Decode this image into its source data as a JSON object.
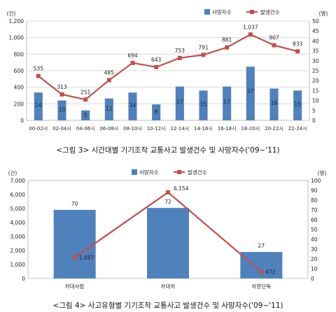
{
  "chart_data": [
    {
      "type": "bar+line",
      "caption": "<그림 3> 시간대별 기기조작 교통사고 발생건수 및 사망자수('09~'11)",
      "left_unit": "(건)",
      "right_unit": "(명)",
      "legend_position": "top-right",
      "categories": [
        "00-02시",
        "02-04시",
        "04-06시",
        "06-08시",
        "08-10시",
        "10-12시",
        "12-14시",
        "14-16시",
        "16-18시",
        "18-20시",
        "20-22시",
        "22-24시"
      ],
      "series": [
        {
          "name": "사망자수",
          "kind": "bar",
          "axis": "right",
          "color": "#4f81bd",
          "values": [
            14,
            10,
            5,
            11,
            14,
            8,
            17,
            15,
            17,
            27,
            16,
            15
          ]
        },
        {
          "name": "발생건수",
          "kind": "line",
          "axis": "left",
          "color": "#c0504d",
          "values": [
            535,
            313,
            251,
            485,
            694,
            643,
            753,
            791,
            881,
            1037,
            907,
            833
          ],
          "labels": [
            "535",
            "313",
            "251",
            "485",
            "694",
            "643",
            "753",
            "791",
            "881",
            "1,037",
            "907",
            "833"
          ]
        }
      ],
      "y_left": {
        "min": 0,
        "max": 1200,
        "ticks": [
          0,
          200,
          400,
          600,
          800,
          1000,
          1200
        ],
        "tick_labels": [
          "0",
          "200",
          "400",
          "600",
          "800",
          "1,000",
          "1,200"
        ]
      },
      "y_right": {
        "min": 0,
        "max": 50,
        "ticks": [
          0,
          5,
          10,
          15,
          20,
          25,
          30,
          35,
          40,
          45,
          50
        ],
        "tick_labels": [
          "0",
          "5",
          "10",
          "15",
          "20",
          "25",
          "30",
          "35",
          "40",
          "45",
          "50"
        ]
      },
      "grid": true
    },
    {
      "type": "bar+line",
      "caption": "<그림 4> 사고유형별 기기조작 교통사고 발생건수 및 사망자수('09~'11)",
      "left_unit": "(건)",
      "right_unit": "(명)",
      "legend_position": "top-center",
      "categories": [
        "차대사람",
        "차대차",
        "차량단독"
      ],
      "series": [
        {
          "name": "사망자수",
          "kind": "bar",
          "axis": "right",
          "color": "#4f81bd",
          "values": [
            70,
            72,
            27
          ]
        },
        {
          "name": "발생건수",
          "kind": "line",
          "axis": "left",
          "color": "#c0504d",
          "values": [
            1497,
            6154,
            472
          ],
          "labels": [
            "1,497",
            "6,154",
            "472"
          ]
        }
      ],
      "y_left": {
        "min": 0,
        "max": 7000,
        "ticks": [
          0,
          1000,
          2000,
          3000,
          4000,
          5000,
          6000,
          7000
        ],
        "tick_labels": [
          "0",
          "1,000",
          "2,000",
          "3,000",
          "4,000",
          "5,000",
          "6,000",
          "7,000"
        ]
      },
      "y_right": {
        "min": 0,
        "max": 100,
        "ticks": [
          0,
          10,
          20,
          30,
          40,
          50,
          60,
          70,
          80,
          90,
          100
        ],
        "tick_labels": [
          "0",
          "10",
          "20",
          "30",
          "40",
          "50",
          "60",
          "70",
          "80",
          "90",
          "100"
        ]
      },
      "grid": false
    }
  ]
}
